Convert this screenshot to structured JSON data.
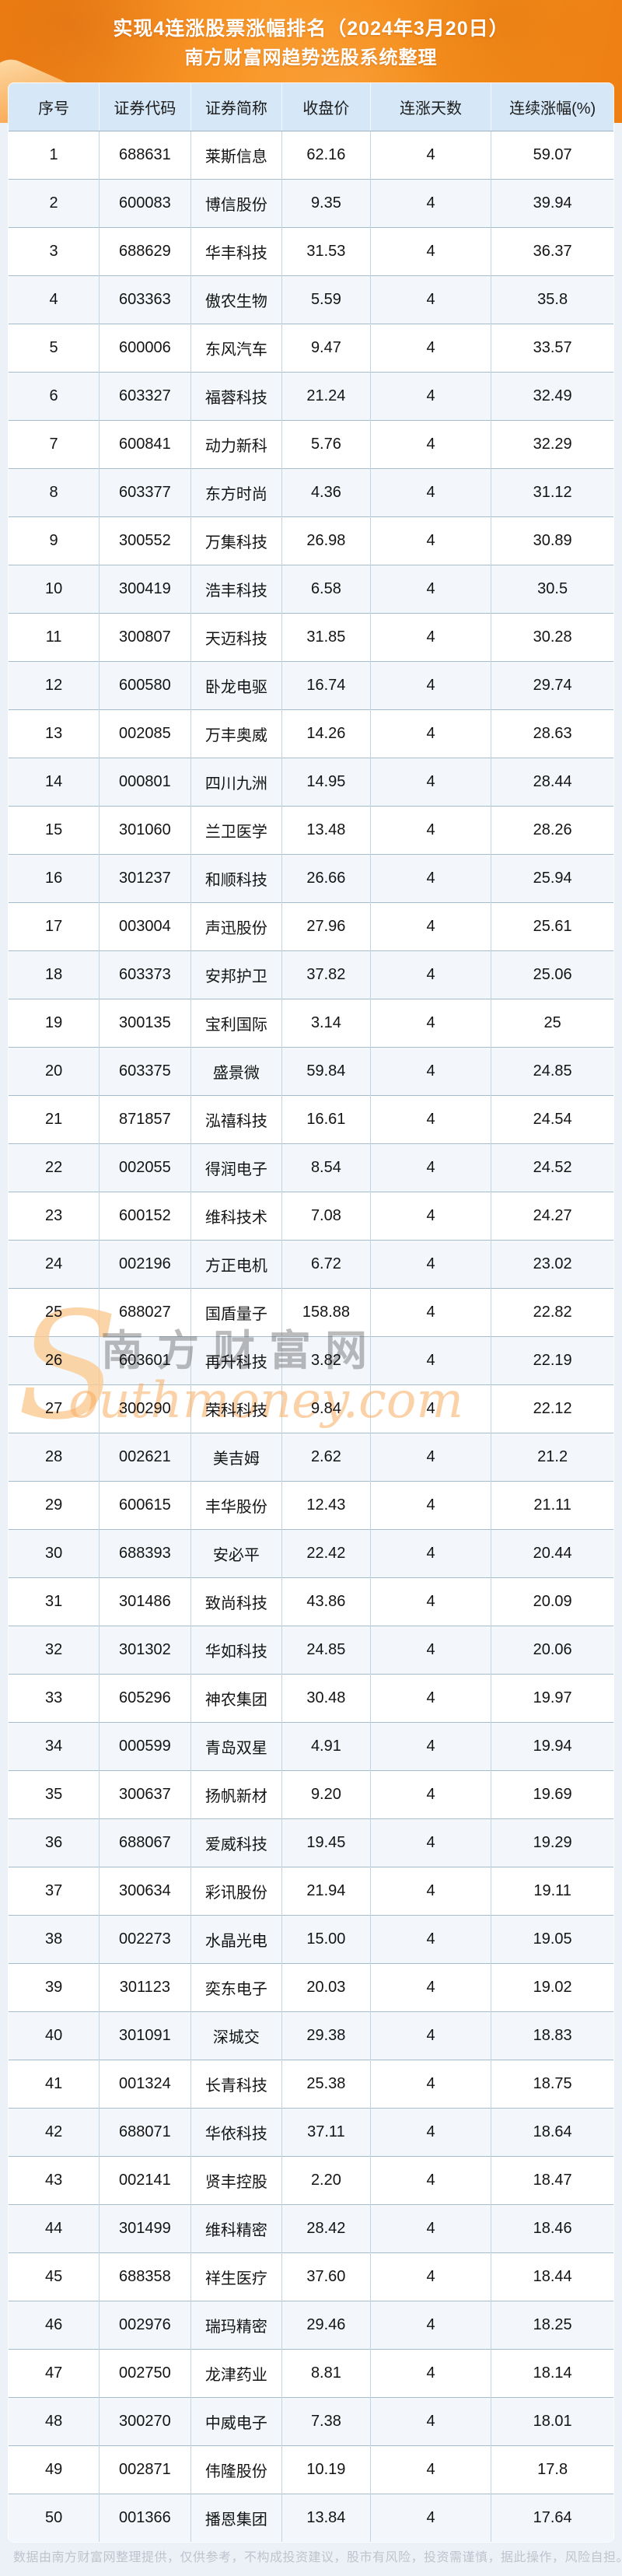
{
  "banner": {
    "title_line1": "实现4连涨股票涨幅排名（2024年3月20日）",
    "title_line2": "南方财富网趋势选股系统整理"
  },
  "table": {
    "columns": [
      "序号",
      "证券代码",
      "证券简称",
      "收盘价",
      "连涨天数",
      "连续涨幅(%)"
    ],
    "rows": [
      [
        "1",
        "688631",
        "莱斯信息",
        "62.16",
        "4",
        "59.07"
      ],
      [
        "2",
        "600083",
        "博信股份",
        "9.35",
        "4",
        "39.94"
      ],
      [
        "3",
        "688629",
        "华丰科技",
        "31.53",
        "4",
        "36.37"
      ],
      [
        "4",
        "603363",
        "傲农生物",
        "5.59",
        "4",
        "35.8"
      ],
      [
        "5",
        "600006",
        "东风汽车",
        "9.47",
        "4",
        "33.57"
      ],
      [
        "6",
        "603327",
        "福蓉科技",
        "21.24",
        "4",
        "32.49"
      ],
      [
        "7",
        "600841",
        "动力新科",
        "5.76",
        "4",
        "32.29"
      ],
      [
        "8",
        "603377",
        "东方时尚",
        "4.36",
        "4",
        "31.12"
      ],
      [
        "9",
        "300552",
        "万集科技",
        "26.98",
        "4",
        "30.89"
      ],
      [
        "10",
        "300419",
        "浩丰科技",
        "6.58",
        "4",
        "30.5"
      ],
      [
        "11",
        "300807",
        "天迈科技",
        "31.85",
        "4",
        "30.28"
      ],
      [
        "12",
        "600580",
        "卧龙电驱",
        "16.74",
        "4",
        "29.74"
      ],
      [
        "13",
        "002085",
        "万丰奥威",
        "14.26",
        "4",
        "28.63"
      ],
      [
        "14",
        "000801",
        "四川九洲",
        "14.95",
        "4",
        "28.44"
      ],
      [
        "15",
        "301060",
        "兰卫医学",
        "13.48",
        "4",
        "28.26"
      ],
      [
        "16",
        "301237",
        "和顺科技",
        "26.66",
        "4",
        "25.94"
      ],
      [
        "17",
        "003004",
        "声迅股份",
        "27.96",
        "4",
        "25.61"
      ],
      [
        "18",
        "603373",
        "安邦护卫",
        "37.82",
        "4",
        "25.06"
      ],
      [
        "19",
        "300135",
        "宝利国际",
        "3.14",
        "4",
        "25"
      ],
      [
        "20",
        "603375",
        "盛景微",
        "59.84",
        "4",
        "24.85"
      ],
      [
        "21",
        "871857",
        "泓禧科技",
        "16.61",
        "4",
        "24.54"
      ],
      [
        "22",
        "002055",
        "得润电子",
        "8.54",
        "4",
        "24.52"
      ],
      [
        "23",
        "600152",
        "维科技术",
        "7.08",
        "4",
        "24.27"
      ],
      [
        "24",
        "002196",
        "方正电机",
        "6.72",
        "4",
        "23.02"
      ],
      [
        "25",
        "688027",
        "国盾量子",
        "158.88",
        "4",
        "22.82"
      ],
      [
        "26",
        "603601",
        "再升科技",
        "3.82",
        "4",
        "22.19"
      ],
      [
        "27",
        "300290",
        "荣科科技",
        "9.84",
        "4",
        "22.12"
      ],
      [
        "28",
        "002621",
        "美吉姆",
        "2.62",
        "4",
        "21.2"
      ],
      [
        "29",
        "600615",
        "丰华股份",
        "12.43",
        "4",
        "21.11"
      ],
      [
        "30",
        "688393",
        "安必平",
        "22.42",
        "4",
        "20.44"
      ],
      [
        "31",
        "301486",
        "致尚科技",
        "43.86",
        "4",
        "20.09"
      ],
      [
        "32",
        "301302",
        "华如科技",
        "24.85",
        "4",
        "20.06"
      ],
      [
        "33",
        "605296",
        "神农集团",
        "30.48",
        "4",
        "19.97"
      ],
      [
        "34",
        "000599",
        "青岛双星",
        "4.91",
        "4",
        "19.94"
      ],
      [
        "35",
        "300637",
        "扬帆新材",
        "9.20",
        "4",
        "19.69"
      ],
      [
        "36",
        "688067",
        "爱威科技",
        "19.45",
        "4",
        "19.29"
      ],
      [
        "37",
        "300634",
        "彩讯股份",
        "21.94",
        "4",
        "19.11"
      ],
      [
        "38",
        "002273",
        "水晶光电",
        "15.00",
        "4",
        "19.05"
      ],
      [
        "39",
        "301123",
        "奕东电子",
        "20.03",
        "4",
        "19.02"
      ],
      [
        "40",
        "301091",
        "深城交",
        "29.38",
        "4",
        "18.83"
      ],
      [
        "41",
        "001324",
        "长青科技",
        "25.38",
        "4",
        "18.75"
      ],
      [
        "42",
        "688071",
        "华依科技",
        "37.11",
        "4",
        "18.64"
      ],
      [
        "43",
        "002141",
        "贤丰控股",
        "2.20",
        "4",
        "18.47"
      ],
      [
        "44",
        "301499",
        "维科精密",
        "28.42",
        "4",
        "18.46"
      ],
      [
        "45",
        "688358",
        "祥生医疗",
        "37.60",
        "4",
        "18.44"
      ],
      [
        "46",
        "002976",
        "瑞玛精密",
        "29.46",
        "4",
        "18.25"
      ],
      [
        "47",
        "002750",
        "龙津药业",
        "8.81",
        "4",
        "18.14"
      ],
      [
        "48",
        "300270",
        "中威电子",
        "7.38",
        "4",
        "18.01"
      ],
      [
        "49",
        "002871",
        "伟隆股份",
        "10.19",
        "4",
        "17.8"
      ],
      [
        "50",
        "001366",
        "播恩集团",
        "13.84",
        "4",
        "17.64"
      ]
    ]
  },
  "watermark": {
    "initial": "S",
    "cn": "南方财富网",
    "en": "outhmoney.com"
  },
  "footer": {
    "disclaimer": "数据由南方财富网整理提供，仅供参考，不构成投资建议，股市有风险，投资需谨慎，据此操作，风险自担。"
  },
  "colors": {
    "banner_orange": "#f28c1b",
    "header_row_bg": "#d6e8f7",
    "row_alt_bg": "#f3f7fb",
    "row_bg": "#ffffff",
    "border_horizontal": "#a4bccc",
    "border_vertical": "#c2d4e2",
    "watermark_orange": "#f7ac5e",
    "watermark_gray": "#5c5c5c",
    "footer_text": "#bdc4ce"
  }
}
